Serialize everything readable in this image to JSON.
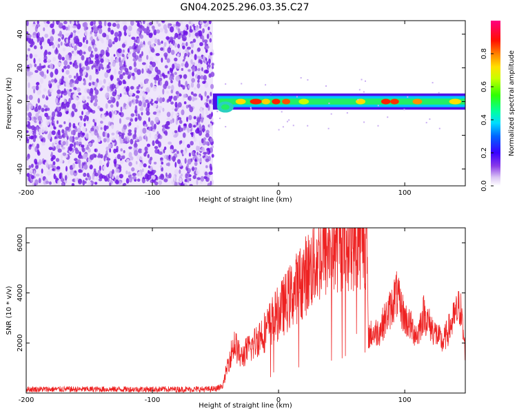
{
  "figure_title": "GN04.2025.296.03.35.C27",
  "colors": {
    "snr_line": "#ee2222",
    "background": "#ffffff",
    "frame": "#000000"
  },
  "chart_data": [
    {
      "type": "heatmap",
      "name": "spectrogram",
      "title": "GN04.2025.296.03.35.C27",
      "xlabel": "Height of straight line (km)",
      "ylabel": "Frequency (Hz)",
      "xlim": [
        -200,
        148
      ],
      "ylim": [
        -50,
        48
      ],
      "xticks": [
        -200,
        -100,
        0,
        100
      ],
      "yticks": [
        -40,
        -20,
        0,
        20,
        40
      ],
      "noise_region_x": [
        -200,
        -52
      ],
      "signal_band": {
        "x": [
          -52,
          148
        ],
        "center_hz": 0,
        "half_width_hz": 3
      },
      "colorbar": {
        "label": "Normalized spectral amplitude",
        "range": [
          0.0,
          1.0
        ],
        "ticks": [
          "0.0",
          "0.2",
          "0.4",
          "0.6",
          "0.8"
        ]
      }
    },
    {
      "type": "line",
      "name": "snr",
      "xlabel": "Height of straight line (km)",
      "ylabel": "SNR (10 * v/v)",
      "xlim": [
        -200,
        148
      ],
      "ylim": [
        0,
        6600
      ],
      "xticks": [
        -200,
        -100,
        0,
        100
      ],
      "yticks": [
        2000,
        4000,
        6000
      ],
      "series": [
        {
          "name": "SNR",
          "x": [
            -200,
            -180,
            -160,
            -140,
            -120,
            -100,
            -80,
            -60,
            -50,
            -44,
            -40,
            -35,
            -30,
            -25,
            -20,
            -15,
            -10,
            -5,
            0,
            10,
            20,
            30,
            40,
            50,
            60,
            70,
            71,
            80,
            90,
            93,
            100,
            110,
            115,
            120,
            130,
            140,
            144,
            148
          ],
          "values": [
            150,
            150,
            150,
            150,
            150,
            150,
            150,
            150,
            160,
            300,
            1200,
            2000,
            1400,
            1700,
            1900,
            2300,
            2500,
            2900,
            3200,
            3900,
            4600,
            5300,
            5800,
            6100,
            6200,
            6250,
            2300,
            2500,
            3500,
            4000,
            3000,
            2300,
            3200,
            2700,
            2000,
            3100,
            3500,
            1600
          ]
        }
      ]
    }
  ]
}
